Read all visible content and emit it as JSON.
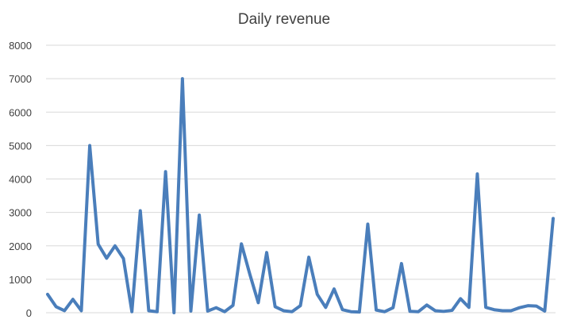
{
  "chart_data": {
    "type": "line",
    "title": "Daily revenue",
    "xlabel": "",
    "ylabel": "",
    "ylim": [
      0,
      8000
    ],
    "yticks": [
      0,
      1000,
      2000,
      3000,
      4000,
      5000,
      6000,
      7000,
      8000
    ],
    "ytick_labels": [
      "0",
      "1000",
      "2000",
      "3000",
      "4000",
      "5000",
      "6000",
      "7000",
      "8000"
    ],
    "grid": true,
    "legend": "none",
    "series": [
      {
        "color": "#4a7ebb",
        "values": [
          550,
          180,
          60,
          400,
          60,
          5000,
          2050,
          1630,
          2000,
          1620,
          30,
          3050,
          60,
          30,
          4220,
          0,
          7000,
          50,
          2920,
          50,
          150,
          30,
          220,
          2060,
          1150,
          300,
          1800,
          180,
          60,
          30,
          210,
          1660,
          550,
          160,
          710,
          90,
          30,
          20,
          2650,
          80,
          30,
          150,
          1470,
          40,
          30,
          230,
          60,
          40,
          70,
          420,
          160,
          4150,
          160,
          90,
          60,
          60,
          150,
          210,
          200,
          50,
          2820
        ]
      }
    ]
  }
}
